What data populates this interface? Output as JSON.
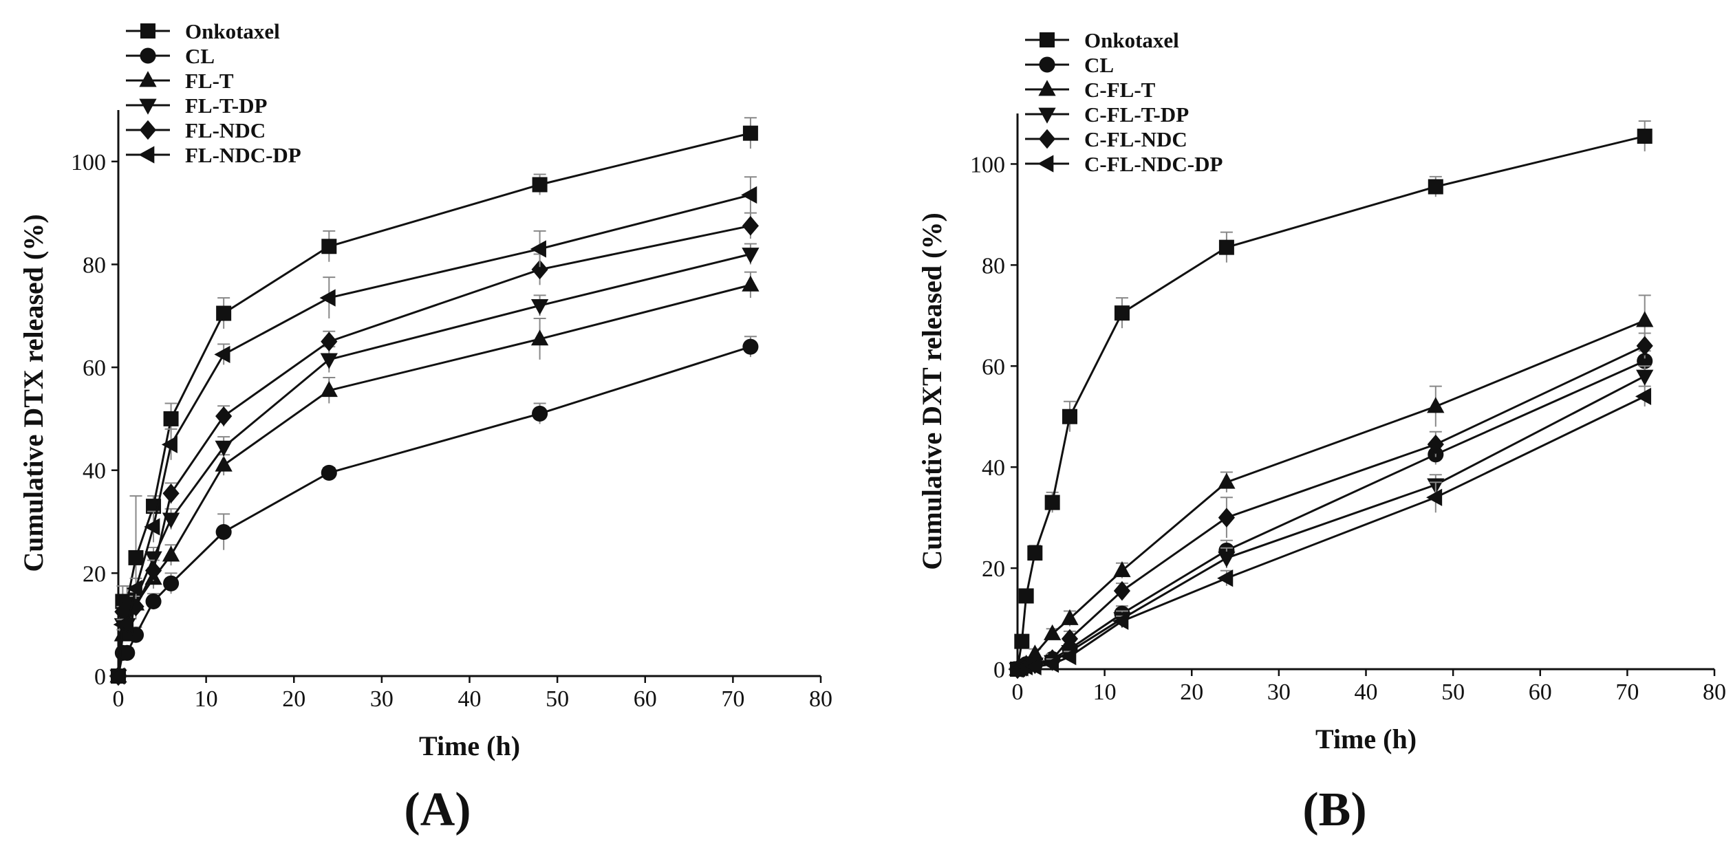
{
  "chart_data": [
    {
      "type": "line",
      "panel_label": "(A)",
      "xlabel": "Time (h)",
      "ylabel": "Cumulative DTX released (%)",
      "xlim": [
        0,
        80
      ],
      "ylim": [
        0,
        110
      ],
      "xticks": [
        0,
        10,
        20,
        30,
        40,
        50,
        60,
        70,
        80
      ],
      "yticks": [
        0,
        20,
        40,
        60,
        80,
        100
      ],
      "legend_position": "top-left",
      "x": [
        0,
        0.5,
        1,
        2,
        4,
        6,
        12,
        24,
        48,
        72
      ],
      "series": [
        {
          "name": "Onkotaxel",
          "marker": "square",
          "values": [
            0,
            14.5,
            14.5,
            23,
            33,
            50,
            70.5,
            83.5,
            95.5,
            105.5
          ],
          "errors": [
            0,
            3,
            3,
            12,
            2,
            3,
            3,
            3,
            2,
            3
          ]
        },
        {
          "name": "CL",
          "marker": "circle",
          "values": [
            0,
            4.5,
            4.5,
            8,
            14.5,
            18,
            28,
            39.5,
            51,
            64
          ],
          "errors": [
            0,
            1,
            1,
            1.5,
            1.5,
            2,
            3.5,
            1,
            2,
            2
          ]
        },
        {
          "name": "FL-T",
          "marker": "triangle-up",
          "values": [
            0,
            8,
            8,
            14,
            19,
            23.5,
            41,
            55.5,
            65.5,
            76
          ],
          "errors": [
            0,
            1,
            1,
            2,
            2,
            2,
            2,
            2.5,
            4,
            2.5
          ]
        },
        {
          "name": "FL-T-DP",
          "marker": "triangle-down",
          "values": [
            0,
            10,
            10,
            15,
            23,
            30.5,
            44.5,
            61.5,
            72,
            82
          ],
          "errors": [
            0,
            1,
            1,
            2,
            2,
            2,
            2,
            2.5,
            2,
            2
          ]
        },
        {
          "name": "FL-NDC",
          "marker": "diamond",
          "values": [
            0,
            12.5,
            12.5,
            13.5,
            20.5,
            35.5,
            50.5,
            65,
            79,
            87.5
          ],
          "errors": [
            0,
            1,
            1,
            2,
            2,
            2,
            2,
            2,
            3,
            2.5
          ]
        },
        {
          "name": "FL-NDC-DP",
          "marker": "triangle-left",
          "values": [
            0,
            10,
            10,
            17,
            29,
            45,
            62.5,
            73.5,
            83,
            93.5
          ],
          "errors": [
            0,
            1,
            1,
            2,
            3,
            3,
            2,
            4,
            3.5,
            3.5
          ]
        }
      ]
    },
    {
      "type": "line",
      "panel_label": "(B)",
      "xlabel": "Time (h)",
      "ylabel": "Cumulative DXT released (%)",
      "xlim": [
        0,
        80
      ],
      "ylim": [
        0,
        110
      ],
      "xticks": [
        0,
        10,
        20,
        30,
        40,
        50,
        60,
        70,
        80
      ],
      "yticks": [
        0,
        20,
        40,
        60,
        80,
        100
      ],
      "legend_position": "top-left",
      "x": [
        0,
        0.5,
        1,
        2,
        4,
        6,
        12,
        24,
        48,
        72
      ],
      "series": [
        {
          "name": "Onkotaxel",
          "marker": "square",
          "values": [
            0,
            5.5,
            14.5,
            23,
            33,
            50,
            70.5,
            83.5,
            95.5,
            105.5
          ],
          "errors": [
            0,
            1,
            1,
            1.5,
            2,
            3,
            3,
            3,
            2,
            3
          ]
        },
        {
          "name": "CL",
          "marker": "circle",
          "values": [
            0,
            0.5,
            1,
            1,
            2,
            4,
            11,
            23.5,
            42.5,
            61
          ],
          "errors": [
            0,
            0.3,
            0.3,
            0.5,
            1,
            1,
            1.5,
            2,
            2,
            2
          ]
        },
        {
          "name": "C-FL-T",
          "marker": "triangle-up",
          "values": [
            0,
            0.5,
            1,
            3,
            7,
            10,
            19.5,
            37,
            52,
            69
          ],
          "errors": [
            0,
            0.3,
            0.5,
            1,
            1,
            1.5,
            1.5,
            2,
            4,
            5
          ]
        },
        {
          "name": "C-FL-T-DP",
          "marker": "triangle-down",
          "values": [
            0,
            0.3,
            0.5,
            1,
            1.5,
            3.5,
            10,
            22,
            36.5,
            58
          ],
          "errors": [
            0,
            0.3,
            0.3,
            0.5,
            1,
            1,
            1.5,
            2,
            2,
            2
          ]
        },
        {
          "name": "C-FL-NDC",
          "marker": "diamond",
          "values": [
            0,
            0.3,
            0.5,
            1,
            2,
            6,
            15.5,
            30,
            44.5,
            64
          ],
          "errors": [
            0,
            0.3,
            0.3,
            0.5,
            1,
            1.5,
            1.5,
            4,
            2.5,
            2.5
          ]
        },
        {
          "name": "C-FL-NDC-DP",
          "marker": "triangle-left",
          "values": [
            0,
            0.3,
            0.5,
            0.5,
            1,
            2.5,
            9.5,
            18,
            34,
            54
          ],
          "errors": [
            0,
            0.3,
            0.3,
            0.5,
            1,
            1,
            1,
            1.5,
            3,
            2
          ]
        }
      ]
    }
  ]
}
